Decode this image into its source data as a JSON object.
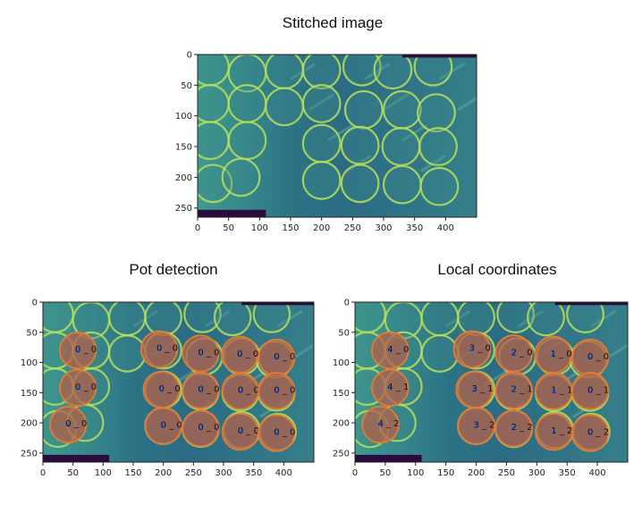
{
  "colors": {
    "background": "#2e7a86",
    "panel_light": "#5fb09a",
    "ring": "#b9e05a",
    "ring_bright": "#e6f564",
    "mask": "#2b0a3d",
    "pot_fill": "#b45f4a",
    "pot_edge": "#e47b35",
    "center_point": "#3a6ee8"
  },
  "chart_data": [
    {
      "type": "heatmap",
      "title": "Stitched image",
      "xlim": [
        0,
        450
      ],
      "ylim": [
        265,
        0
      ],
      "xticks": [
        "0",
        "50",
        "100",
        "150",
        "200",
        "250",
        "300",
        "350",
        "400"
      ],
      "yticks": [
        "0",
        "50",
        "100",
        "150",
        "200",
        "250"
      ],
      "pots": []
    },
    {
      "type": "heatmap",
      "title": "Pot detection",
      "xlim": [
        0,
        450
      ],
      "ylim": [
        265,
        0
      ],
      "xticks": [
        "0",
        "50",
        "100",
        "150",
        "200",
        "250",
        "300",
        "350",
        "400"
      ],
      "yticks": [
        "0",
        "50",
        "100",
        "150",
        "200",
        "250"
      ],
      "pots": [
        {
          "x": 58,
          "y": 80,
          "label": "0 _ 0"
        },
        {
          "x": 193,
          "y": 78,
          "label": "0 _ 0"
        },
        {
          "x": 262,
          "y": 85,
          "label": "0 _ 0"
        },
        {
          "x": 327,
          "y": 87,
          "label": "0 _ 0"
        },
        {
          "x": 388,
          "y": 92,
          "label": "0 _ 0"
        },
        {
          "x": 58,
          "y": 142,
          "label": "0 _ 0"
        },
        {
          "x": 197,
          "y": 145,
          "label": "0 _ 0"
        },
        {
          "x": 262,
          "y": 146,
          "label": "0 _ 0"
        },
        {
          "x": 328,
          "y": 147,
          "label": "0 _ 0"
        },
        {
          "x": 388,
          "y": 147,
          "label": "0 _ 0"
        },
        {
          "x": 42,
          "y": 203,
          "label": "0 _ 0"
        },
        {
          "x": 200,
          "y": 205,
          "label": "0 _ 0"
        },
        {
          "x": 262,
          "y": 209,
          "label": "0 _ 0"
        },
        {
          "x": 328,
          "y": 215,
          "label": "0 _ 0"
        },
        {
          "x": 388,
          "y": 217,
          "label": "0 _ 0"
        }
      ]
    },
    {
      "type": "heatmap",
      "title": "Local coordinates",
      "xlim": [
        0,
        450
      ],
      "ylim": [
        265,
        0
      ],
      "xticks": [
        "0",
        "50",
        "100",
        "150",
        "200",
        "250",
        "300",
        "350",
        "400"
      ],
      "yticks": [
        "0",
        "50",
        "100",
        "150",
        "200",
        "250"
      ],
      "pots": [
        {
          "x": 58,
          "y": 80,
          "label": "4 _ 0"
        },
        {
          "x": 193,
          "y": 78,
          "label": "3 _ 0"
        },
        {
          "x": 262,
          "y": 85,
          "label": "2 _ 0"
        },
        {
          "x": 327,
          "y": 87,
          "label": "1 _ 0"
        },
        {
          "x": 388,
          "y": 92,
          "label": "0 _ 0"
        },
        {
          "x": 58,
          "y": 142,
          "label": "4 _ 1"
        },
        {
          "x": 197,
          "y": 145,
          "label": "3 _ 1"
        },
        {
          "x": 262,
          "y": 146,
          "label": "2 _ 1"
        },
        {
          "x": 328,
          "y": 147,
          "label": "1 _ 1"
        },
        {
          "x": 388,
          "y": 147,
          "label": "0 _ 1"
        },
        {
          "x": 42,
          "y": 203,
          "label": "4 _ 2"
        },
        {
          "x": 200,
          "y": 205,
          "label": "3 _ 2"
        },
        {
          "x": 262,
          "y": 209,
          "label": "2 _ 2"
        },
        {
          "x": 328,
          "y": 215,
          "label": "1 _ 2"
        },
        {
          "x": 388,
          "y": 217,
          "label": "0 _ 2"
        }
      ]
    }
  ]
}
